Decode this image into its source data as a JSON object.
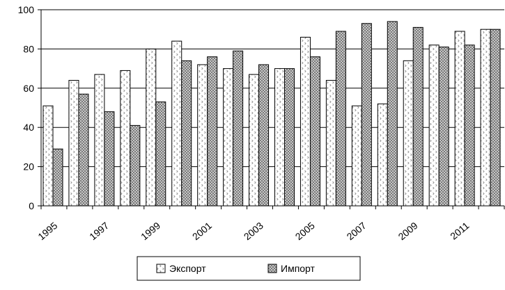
{
  "chart_data": {
    "type": "bar",
    "title": "",
    "xlabel": "",
    "ylabel": "",
    "ylim": [
      0,
      100
    ],
    "yticks": [
      0,
      20,
      40,
      60,
      80,
      100
    ],
    "grid": true,
    "legend_position": "bottom",
    "categories": [
      "1995",
      "1996",
      "1997",
      "1998",
      "1999",
      "2000",
      "2001",
      "2002",
      "2003",
      "2004",
      "2005",
      "2006",
      "2007",
      "2008",
      "2009",
      "2010",
      "2011",
      "2012"
    ],
    "x_tick_labels": [
      "1995",
      "1997",
      "1999",
      "2001",
      "2003",
      "2005",
      "2007",
      "2009",
      "2011"
    ],
    "series": [
      {
        "name": "Экспорт",
        "values": [
          51,
          64,
          67,
          69,
          80,
          84,
          72,
          70,
          67,
          70,
          86,
          64,
          51,
          52,
          74,
          82,
          89,
          90
        ],
        "pattern": "sparse-dots"
      },
      {
        "name": "Импорт",
        "values": [
          29,
          57,
          48,
          41,
          53,
          74,
          76,
          79,
          72,
          70,
          76,
          89,
          93,
          94,
          91,
          81,
          82,
          90
        ],
        "pattern": "dense-crosshatch"
      }
    ]
  }
}
